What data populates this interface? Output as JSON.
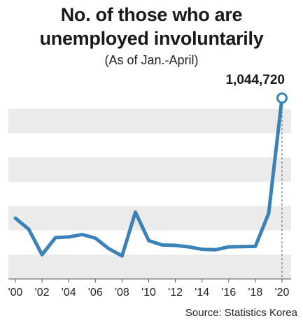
{
  "chart_data": {
    "type": "line",
    "title": "No. of those who are unemployed involuntarily",
    "subtitle": "(As of Jan.-April)",
    "source": "Source: Statistics Korea",
    "x": [
      2000,
      2001,
      2002,
      2003,
      2004,
      2005,
      2006,
      2007,
      2008,
      2009,
      2010,
      2011,
      2012,
      2013,
      2014,
      2015,
      2016,
      2017,
      2018,
      2019,
      2020
    ],
    "values": [
      550000,
      505000,
      400000,
      470000,
      473000,
      483000,
      468000,
      425000,
      395000,
      575000,
      458000,
      440000,
      438000,
      432000,
      422000,
      420000,
      432000,
      433000,
      434000,
      570000,
      1044720
    ],
    "x_tick_labels": [
      "'00",
      "'02",
      "'04",
      "'06",
      "'08",
      "'10",
      "'12",
      "'14",
      "'16",
      "'18",
      "'20"
    ],
    "x_ticks": [
      2000,
      2002,
      2004,
      2006,
      2008,
      2010,
      2012,
      2014,
      2016,
      2018,
      2020
    ],
    "annotation": {
      "x": 2020,
      "label": "1,044,720"
    },
    "ylim": [
      300000,
      1100000
    ],
    "grid": "alternating bands",
    "line_color": "#3b82b8",
    "band_color": "#ebebeb"
  }
}
